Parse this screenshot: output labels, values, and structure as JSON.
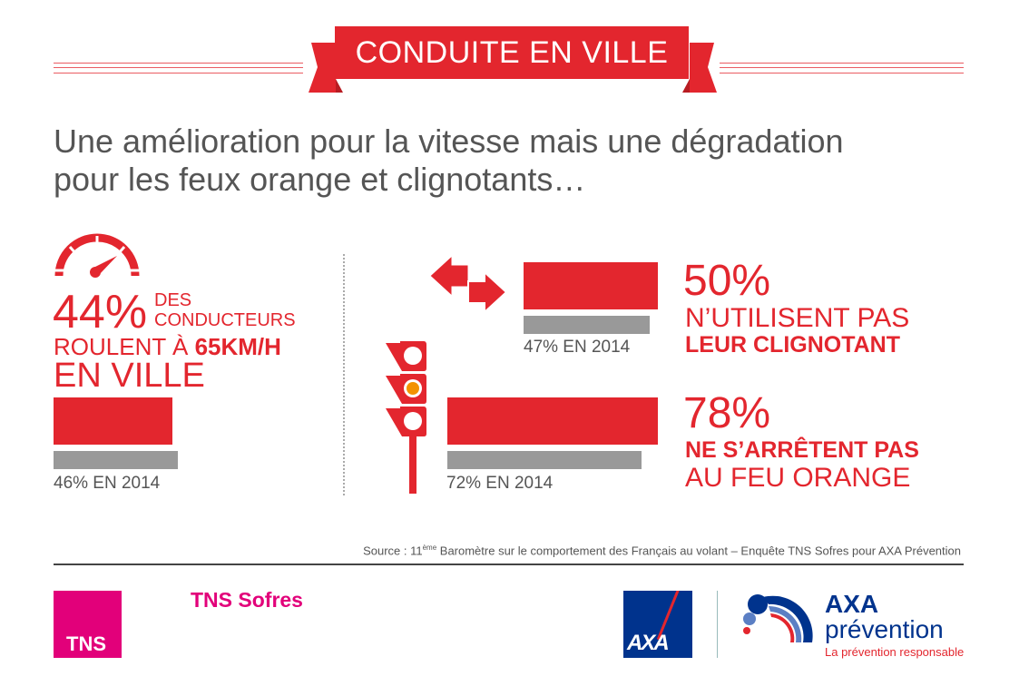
{
  "header": {
    "title": "CONDUITE EN VILLE"
  },
  "headline": {
    "line1": "Une amélioration pour la vitesse mais une dégradation",
    "line2": "pour les feux orange et clignotants…"
  },
  "speed": {
    "percent": "44%",
    "des": "DES",
    "conducteurs": "CONDUCTEURS",
    "roulent": "ROULENT À ",
    "speed": "65KM/H",
    "en_ville": "EN VILLE",
    "prev_label": "46% EN 2014",
    "icon": "speedometer-icon"
  },
  "clignotant": {
    "percent": "50%",
    "line1": "N’UTILISENT PAS",
    "line2": "LEUR CLIGNOTANT",
    "prev_label": "47% EN 2014",
    "icon": "turn-arrows-icon"
  },
  "feu": {
    "percent": "78%",
    "line1": "NE S’ARRÊTENT PAS",
    "line2": "AU FEU ORANGE",
    "prev_label": "72% EN 2014",
    "icon": "traffic-light-icon"
  },
  "footer": {
    "source_pre": "Source : 11",
    "source_sup": "ème",
    "source_post": " Baromètre sur le comportement des Français au volant – Enquête TNS Sofres pour AXA Prévention",
    "tns_box": "TNS",
    "tns_sofres": "TNS Sofres",
    "axa": "AXA",
    "axa_prev1": "AXA",
    "axa_prev2": "prévention",
    "axa_tagline": "La prévention responsable"
  },
  "colors": {
    "accent": "#e3262e",
    "previous": "#999999",
    "tns": "#e2007a",
    "axa_blue": "#00338d",
    "amber": "#f39200"
  },
  "chart_data": {
    "type": "bar",
    "categories": [
      "Roulent à 65km/h en ville",
      "N'utilisent pas leur clignotant",
      "Ne s'arrêtent pas au feu orange"
    ],
    "series": [
      {
        "name": "",
        "values": [
          44,
          50,
          78
        ]
      },
      {
        "name": "2014",
        "values": [
          46,
          47,
          72
        ]
      }
    ],
    "ylim": [
      0,
      100
    ]
  }
}
